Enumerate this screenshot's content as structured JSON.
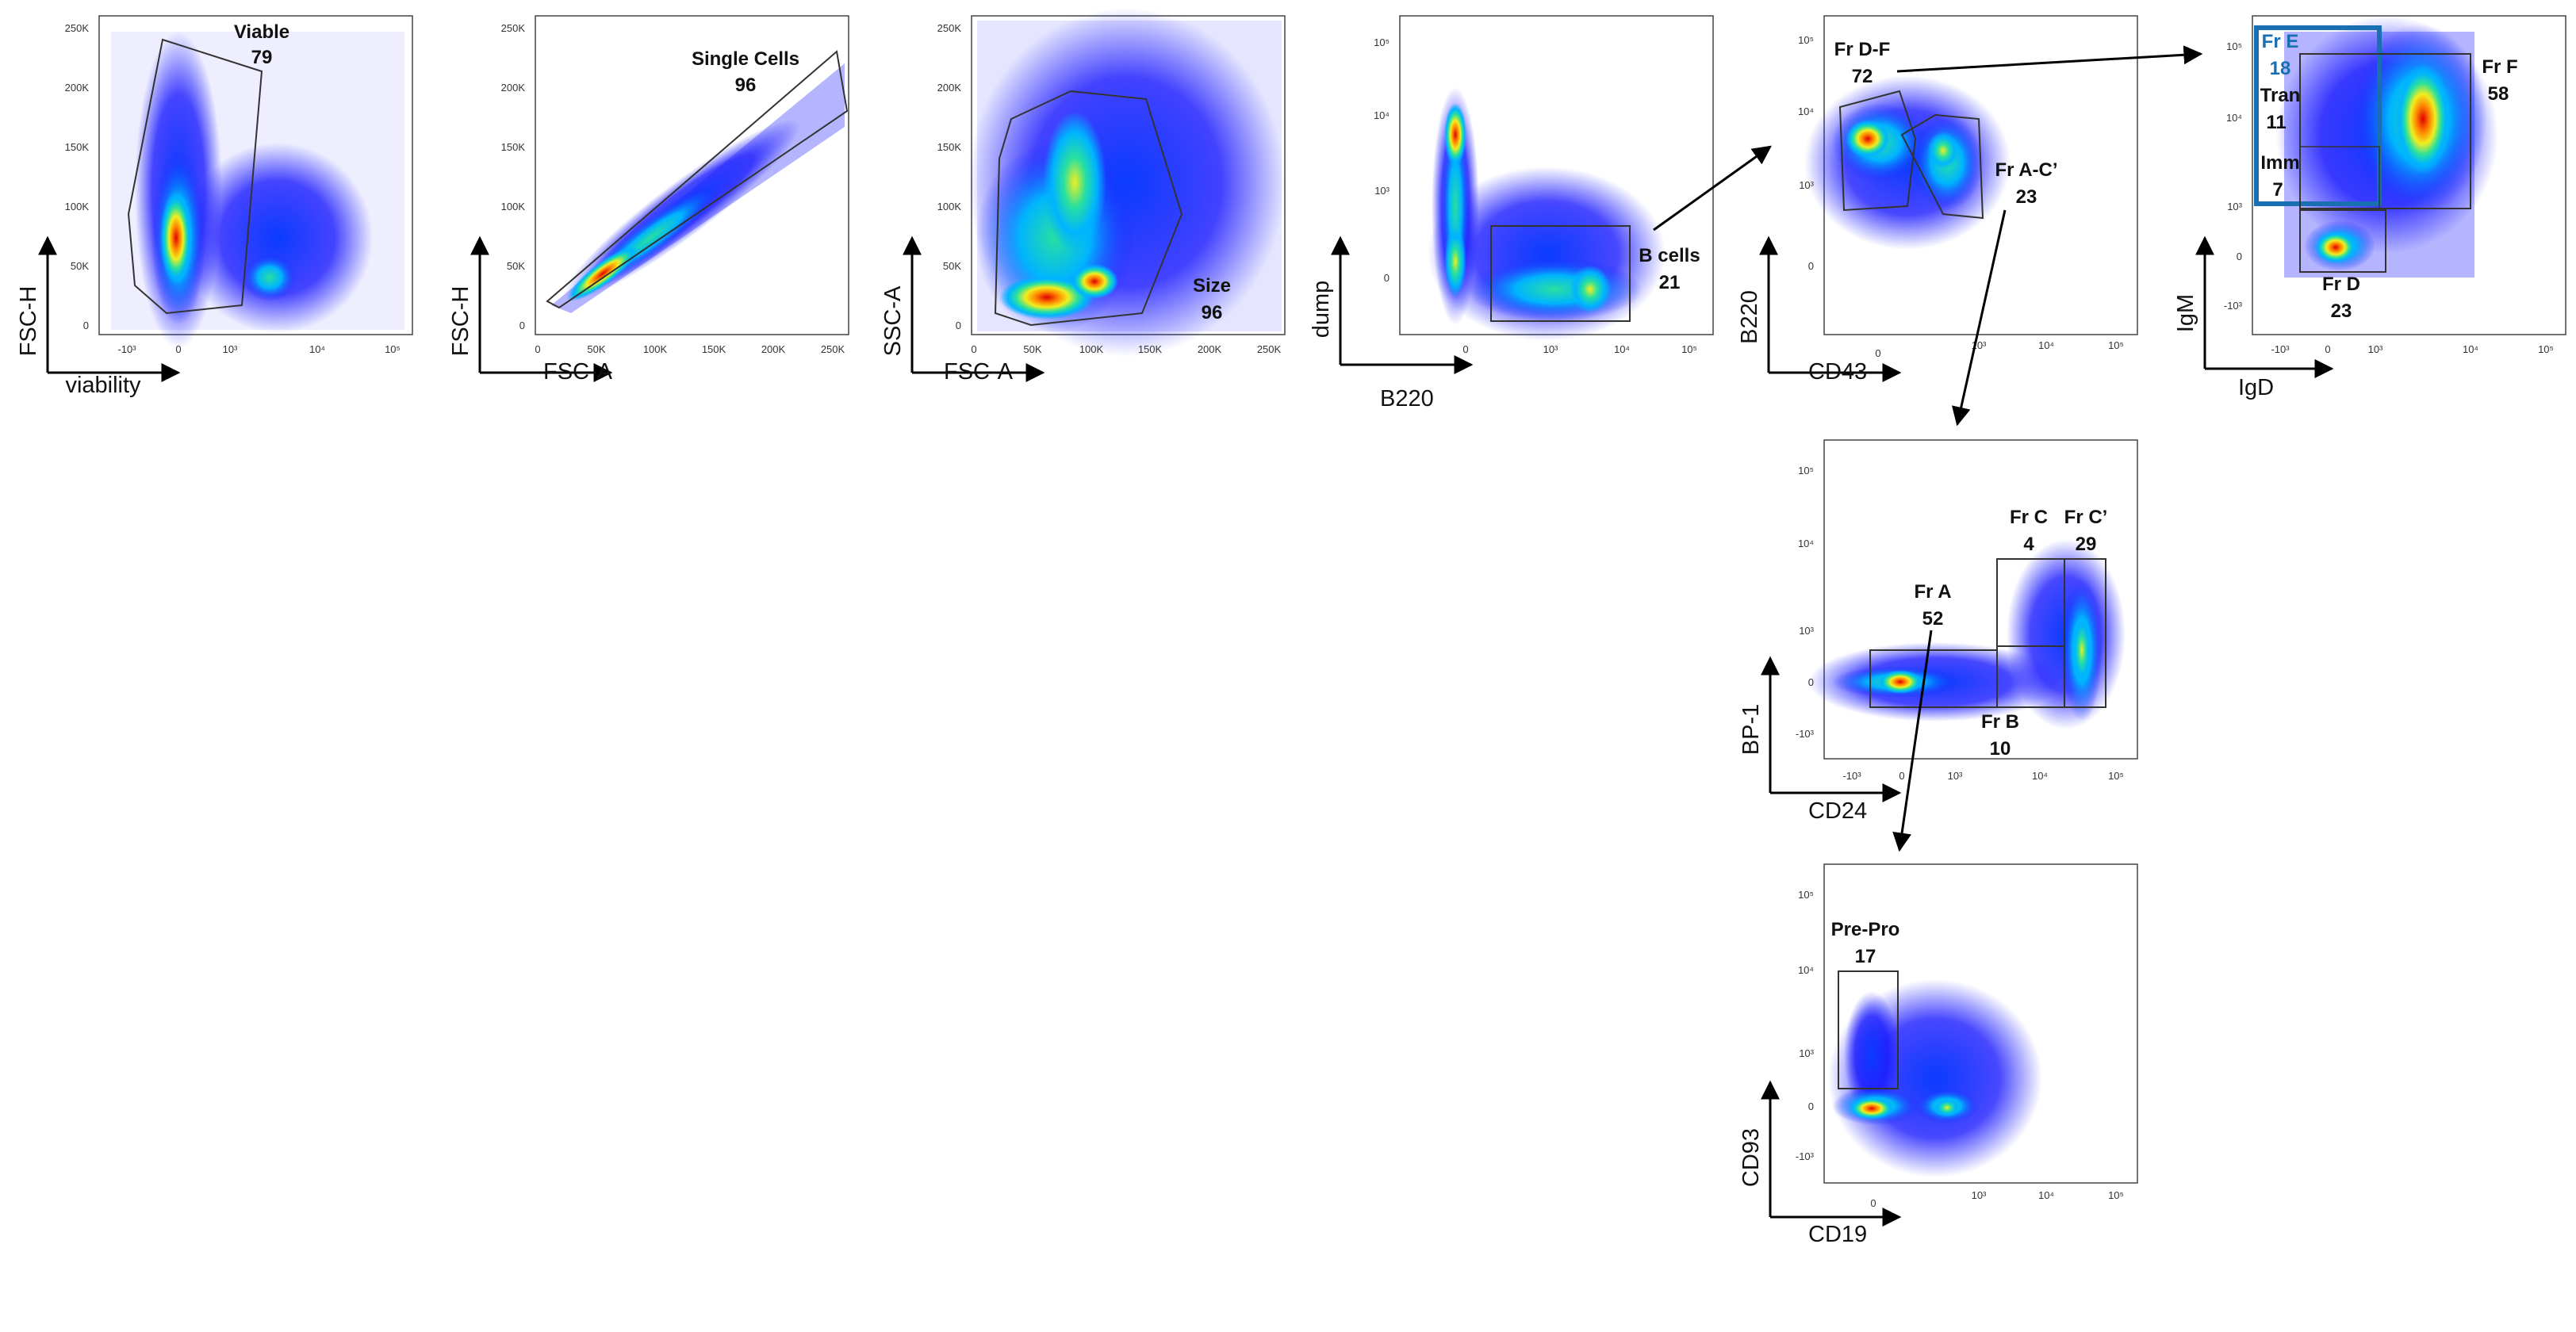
{
  "chart_data": [
    {
      "type": "scatter",
      "id": "p1",
      "xlabel": "viability",
      "ylabel": "FSC-H",
      "x_scale": "biexponential",
      "x_ticks": [
        "-10³",
        "0",
        "10³",
        "10⁴",
        "10⁵"
      ],
      "y_ticks": [
        "0",
        "50K",
        "100K",
        "150K",
        "200K",
        "250K"
      ],
      "gates": [
        {
          "name": "Viable",
          "value": "79"
        }
      ]
    },
    {
      "type": "scatter",
      "id": "p2",
      "xlabel": "FSC-A",
      "ylabel": "FSC-H",
      "x_ticks": [
        "0",
        "50K",
        "100K",
        "150K",
        "200K",
        "250K"
      ],
      "y_ticks": [
        "0",
        "50K",
        "100K",
        "150K",
        "200K",
        "250K"
      ],
      "gates": [
        {
          "name": "Single Cells",
          "value": "96"
        }
      ]
    },
    {
      "type": "scatter",
      "id": "p3",
      "xlabel": "FSC-A",
      "ylabel": "SSC-A",
      "x_ticks": [
        "0",
        "50K",
        "100K",
        "150K",
        "200K",
        "250K"
      ],
      "y_ticks": [
        "0",
        "50K",
        "100K",
        "150K",
        "200K",
        "250K"
      ],
      "gates": [
        {
          "name": "Size",
          "value": "96"
        }
      ]
    },
    {
      "type": "scatter",
      "id": "p4",
      "xlabel": "B220",
      "ylabel": "dump",
      "x_ticks": [
        "0",
        "10³",
        "10⁴",
        "10⁵"
      ],
      "y_ticks": [
        "0",
        "10³",
        "10⁴",
        "10⁵"
      ],
      "gates": [
        {
          "name": "B cells",
          "value": "21"
        }
      ]
    },
    {
      "type": "scatter",
      "id": "p5",
      "xlabel": "CD43",
      "ylabel": "B220",
      "x_ticks": [
        "0",
        "10³",
        "10⁴",
        "10⁵"
      ],
      "y_ticks": [
        "0",
        "10³",
        "10⁴",
        "10⁵"
      ],
      "gates": [
        {
          "name": "Fr D-F",
          "value": "72"
        },
        {
          "name": "Fr A-C’",
          "value": "23"
        }
      ]
    },
    {
      "type": "scatter",
      "id": "p6",
      "xlabel": "IgD",
      "ylabel": "IgM",
      "x_ticks": [
        "-10³",
        "0",
        "10³",
        "10⁴",
        "10⁵"
      ],
      "y_ticks": [
        "-10³",
        "0",
        "10³",
        "10⁴",
        "10⁵"
      ],
      "gates": [
        {
          "name": "Fr E",
          "value": "18"
        },
        {
          "name": "Tran",
          "value": "11"
        },
        {
          "name": "Imm",
          "value": "7"
        },
        {
          "name": "Fr F",
          "value": "58"
        },
        {
          "name": "Fr D",
          "value": "23"
        }
      ]
    },
    {
      "type": "scatter",
      "id": "p7",
      "xlabel": "CD24",
      "ylabel": "BP-1",
      "x_ticks": [
        "-10³",
        "0",
        "10³",
        "10⁴",
        "10⁵"
      ],
      "y_ticks": [
        "-10³",
        "0",
        "10³",
        "10⁴",
        "10⁵"
      ],
      "gates": [
        {
          "name": "Fr A",
          "value": "52"
        },
        {
          "name": "Fr B",
          "value": "10"
        },
        {
          "name": "Fr C",
          "value": "4"
        },
        {
          "name": "Fr C’",
          "value": "29"
        }
      ]
    },
    {
      "type": "scatter",
      "id": "p8",
      "xlabel": "CD19",
      "ylabel": "CD93",
      "x_ticks": [
        "0",
        "10³",
        "10⁴",
        "10⁵"
      ],
      "y_ticks": [
        "-10³",
        "0",
        "10³",
        "10⁴",
        "10⁵"
      ],
      "gates": [
        {
          "name": "Pre-Pro",
          "value": "17"
        }
      ]
    }
  ],
  "colors": {
    "density": [
      "#1a1aff",
      "#00b4ff",
      "#27e0a0",
      "#f0ee20",
      "#ff8a00",
      "#e00000"
    ],
    "highlight_gate": "#1a6fb3",
    "gate_line": "#222222",
    "axis": "#000000"
  }
}
